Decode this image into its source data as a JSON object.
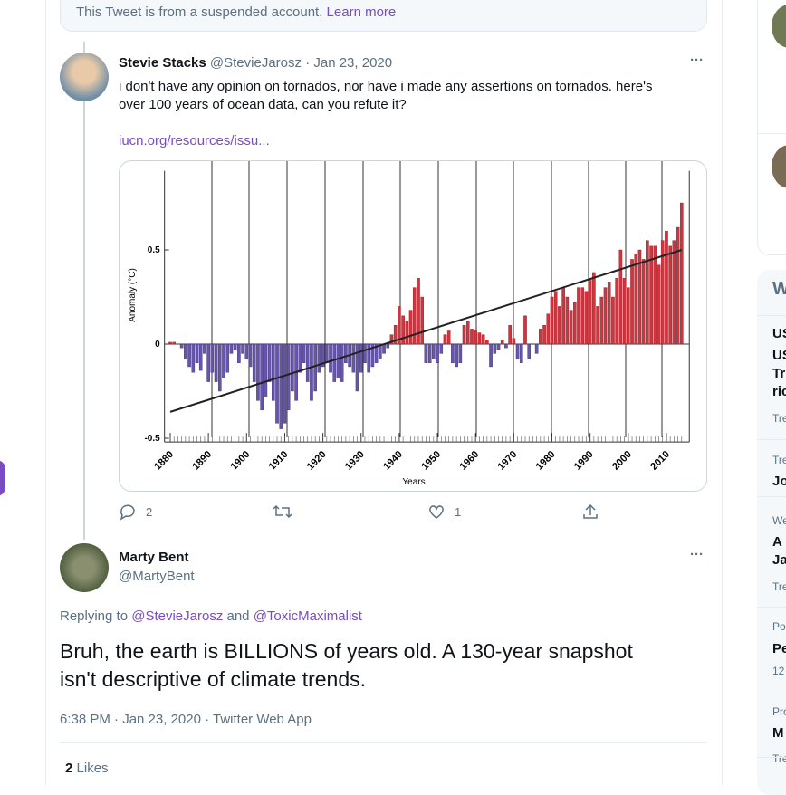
{
  "notice": {
    "text": "This Tweet is from a suspended account.",
    "link": "Learn more"
  },
  "tweet1": {
    "name": "Stevie Stacks",
    "handle": "@StevieJarosz",
    "dot": "·",
    "date": "Jan 23, 2020",
    "more": "···",
    "text_line1": "i don't have any opinion on tornados, nor have i made any assertions on tornados.  here's",
    "text_line2": "over 100 years of ocean data, can you refute it?",
    "link": "iucn.org/resources/issu...",
    "reply_count": 2,
    "like_count": 1
  },
  "chart_data": {
    "type": "bar",
    "ylabel": "Anomaly (°C)",
    "xlabel": "Years",
    "x": [
      1880,
      1881,
      1882,
      1883,
      1884,
      1885,
      1886,
      1887,
      1888,
      1889,
      1890,
      1891,
      1892,
      1893,
      1894,
      1895,
      1896,
      1897,
      1898,
      1899,
      1900,
      1901,
      1902,
      1903,
      1904,
      1905,
      1906,
      1907,
      1908,
      1909,
      1910,
      1911,
      1912,
      1913,
      1914,
      1915,
      1916,
      1917,
      1918,
      1919,
      1920,
      1921,
      1922,
      1923,
      1924,
      1925,
      1926,
      1927,
      1928,
      1929,
      1930,
      1931,
      1932,
      1933,
      1934,
      1935,
      1936,
      1937,
      1938,
      1939,
      1940,
      1941,
      1942,
      1943,
      1944,
      1945,
      1946,
      1947,
      1948,
      1949,
      1950,
      1951,
      1952,
      1953,
      1954,
      1955,
      1956,
      1957,
      1958,
      1959,
      1960,
      1961,
      1962,
      1963,
      1964,
      1965,
      1966,
      1967,
      1968,
      1969,
      1970,
      1971,
      1972,
      1973,
      1974,
      1975,
      1976,
      1977,
      1978,
      1979,
      1980,
      1981,
      1982,
      1983,
      1984,
      1985,
      1986,
      1987,
      1988,
      1989,
      1990,
      1991,
      1992,
      1993,
      1994,
      1995,
      1996,
      1997,
      1998,
      1999,
      2000,
      2001,
      2002,
      2003,
      2004,
      2005,
      2006,
      2007,
      2008,
      2009,
      2010,
      2011,
      2012,
      2013,
      2014
    ],
    "values": [
      0.01,
      0.01,
      0,
      -0.02,
      -0.08,
      -0.12,
      -0.15,
      -0.1,
      -0.14,
      -0.05,
      -0.2,
      -0.15,
      -0.2,
      -0.25,
      -0.18,
      -0.15,
      -0.05,
      -0.03,
      -0.1,
      -0.05,
      -0.08,
      -0.12,
      -0.2,
      -0.3,
      -0.35,
      -0.28,
      -0.2,
      -0.3,
      -0.42,
      -0.45,
      -0.42,
      -0.35,
      -0.25,
      -0.3,
      -0.15,
      -0.1,
      -0.2,
      -0.3,
      -0.25,
      -0.15,
      -0.12,
      -0.1,
      -0.15,
      -0.2,
      -0.18,
      -0.2,
      -0.1,
      -0.12,
      -0.15,
      -0.25,
      -0.15,
      -0.1,
      -0.15,
      -0.12,
      -0.1,
      -0.08,
      -0.05,
      -0.02,
      0.05,
      0.1,
      0.2,
      0.15,
      0.12,
      0.18,
      0.3,
      0.35,
      0.25,
      -0.1,
      -0.1,
      -0.08,
      -0.1,
      -0.05,
      0.05,
      0.07,
      -0.1,
      -0.12,
      -0.1,
      0.1,
      0.12,
      0.08,
      0.07,
      0.06,
      0.05,
      0.02,
      -0.12,
      -0.05,
      -0.03,
      0.02,
      -0.02,
      0.1,
      0.03,
      -0.08,
      -0.1,
      0.15,
      -0.08,
      0,
      -0.05,
      0.08,
      0.1,
      0.16,
      0.25,
      0.28,
      0.2,
      0.3,
      0.25,
      0.18,
      0.22,
      0.3,
      0.3,
      0.28,
      0.35,
      0.38,
      0.2,
      0.25,
      0.3,
      0.33,
      0.25,
      0.35,
      0.5,
      0.35,
      0.3,
      0.45,
      0.48,
      0.5,
      0.45,
      0.55,
      0.52,
      0.52,
      0.42,
      0.55,
      0.6,
      0.52,
      0.55,
      0.62,
      0.75
    ],
    "positive_color": "#d0353f",
    "negative_color": "#6655aa",
    "trend": {
      "x": [
        1880,
        2014
      ],
      "values": [
        -0.36,
        0.5
      ]
    },
    "xlim": [
      1878.5,
      2016
    ],
    "ylim": [
      -0.52,
      0.92
    ],
    "xticks": [
      1880,
      1890,
      1900,
      1910,
      1920,
      1930,
      1940,
      1950,
      1960,
      1970,
      1980,
      1990,
      2000,
      2010
    ],
    "yticks": [
      -0.5,
      0,
      0.5
    ]
  },
  "tweet2": {
    "name": "Marty Bent",
    "handle": "@MartyBent",
    "more": "···",
    "replying": "Replying to",
    "mention1": "@StevieJarosz",
    "and": "and",
    "mention2": "@ToxicMaximalist",
    "text_line1": "Bruh, the earth is BILLIONS of years old. A 130-year snapshot",
    "text_line2": "isn't descriptive of climate trends.",
    "meta": "6:38 PM · Jan 23, 2020 · Twitter Web App",
    "likes_count": 2,
    "likes_label": "Likes"
  },
  "sidebar": [
    "W",
    "US",
    "US",
    "Tr",
    "ric",
    "Tre",
    "Tre",
    "Jo",
    "We",
    "A",
    "Ja",
    "Tre",
    "Po",
    "Pe",
    "12",
    "Pro",
    "M",
    "Tre"
  ]
}
